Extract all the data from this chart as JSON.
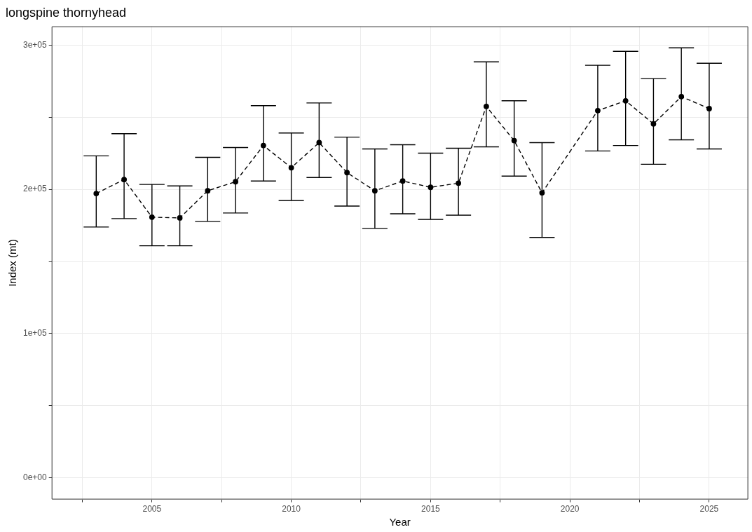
{
  "chart_data": {
    "type": "line",
    "title": "longspine thornyhead",
    "xlabel": "Year",
    "ylabel": "Index (mt)",
    "x": [
      2003,
      2004,
      2005,
      2006,
      2007,
      2008,
      2009,
      2010,
      2011,
      2012,
      2013,
      2014,
      2015,
      2016,
      2017,
      2018,
      2019,
      2021,
      2022,
      2023,
      2024,
      2025
    ],
    "series": [
      {
        "color": "#000000",
        "values": [
          197100,
          206800,
          180700,
          180200,
          199000,
          205300,
          230400,
          215000,
          232400,
          211600,
          199000,
          205800,
          201400,
          204300,
          257500,
          233800,
          197600,
          254600,
          261400,
          245400,
          264300,
          256000
        ],
        "errors": [
          [
            173900,
            223200
          ],
          [
            179700,
            238600
          ],
          [
            160900,
            203400
          ],
          [
            160900,
            202400
          ],
          [
            177800,
            222200
          ],
          [
            183600,
            229000
          ],
          [
            205800,
            258000
          ],
          [
            192300,
            239100
          ],
          [
            208200,
            259900
          ],
          [
            188400,
            236200
          ],
          [
            172900,
            228000
          ],
          [
            183100,
            230900
          ],
          [
            179200,
            225100
          ],
          [
            182100,
            228500
          ],
          [
            229500,
            288400
          ],
          [
            209200,
            261400
          ],
          [
            166700,
            232400
          ],
          [
            226600,
            286000
          ],
          [
            230400,
            295700
          ],
          [
            217400,
            276800
          ],
          [
            234300,
            298100
          ],
          [
            228000,
            287400
          ]
        ]
      }
    ],
    "xlim": [
      2001.4,
      2026.4
    ],
    "xticks": [
      {
        "value": 2002.5,
        "label": null
      },
      2005,
      {
        "value": 2007.5,
        "label": null
      },
      2010,
      {
        "value": 2012.5,
        "label": null
      },
      2015,
      {
        "value": 2017.5,
        "label": null
      },
      2020,
      {
        "value": 2022.5,
        "label": null
      },
      2025
    ],
    "ylim": [
      -15000,
      313000
    ],
    "yticks": [
      {
        "value": 0,
        "label": "0e+00"
      },
      {
        "value": 50000,
        "label": null
      },
      {
        "value": 100000,
        "label": "1e+05"
      },
      {
        "value": 150000,
        "label": null
      },
      {
        "value": 200000,
        "label": "2e+05"
      },
      {
        "value": 250000,
        "label": null
      },
      {
        "value": 300000,
        "label": "3e+05"
      }
    ],
    "grid": true,
    "marker": "circle",
    "line_style": "dashed",
    "legend": false
  }
}
